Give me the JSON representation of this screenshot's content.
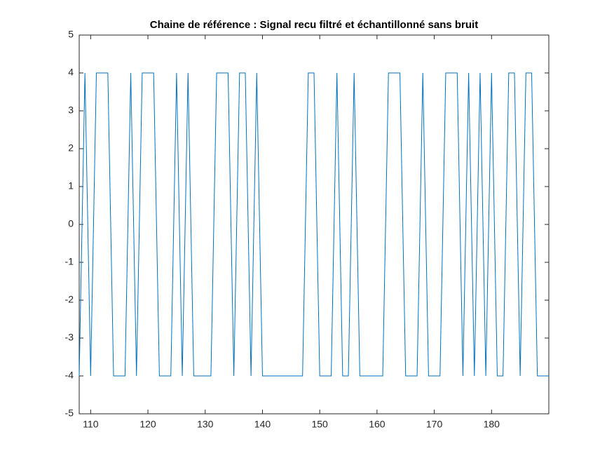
{
  "chart_data": {
    "type": "line",
    "title": "Chaine de référence : Signal recu filtré et échantillonné sans bruit",
    "x": [
      108,
      109,
      110,
      111,
      112,
      113,
      114,
      115,
      116,
      117,
      118,
      119,
      120,
      121,
      122,
      123,
      124,
      125,
      126,
      127,
      128,
      129,
      130,
      131,
      132,
      133,
      134,
      135,
      136,
      137,
      138,
      139,
      140,
      141,
      142,
      143,
      144,
      145,
      146,
      147,
      148,
      149,
      150,
      151,
      152,
      153,
      154,
      155,
      156,
      157,
      158,
      159,
      160,
      161,
      162,
      163,
      164,
      165,
      166,
      167,
      168,
      169,
      170,
      171,
      172,
      173,
      174,
      175,
      176,
      177,
      178,
      179,
      180,
      181,
      182,
      183,
      184,
      185,
      186,
      187,
      188,
      189,
      190
    ],
    "series": [
      {
        "color": "#0072bd",
        "values": [
          -4,
          4,
          -4,
          4,
          4,
          4,
          -4,
          -4,
          -4,
          4,
          -4,
          4,
          4,
          4,
          -4,
          -4,
          -4,
          4,
          -4,
          4,
          -4,
          -4,
          -4,
          -4,
          4,
          4,
          4,
          -4,
          4,
          4,
          -4,
          4,
          -4,
          -4,
          -4,
          -4,
          -4,
          -4,
          -4,
          -4,
          4,
          4,
          -4,
          -4,
          -4,
          4,
          -4,
          -4,
          4,
          -4,
          -4,
          -4,
          -4,
          -4,
          4,
          4,
          4,
          -4,
          -4,
          -4,
          4,
          -4,
          -4,
          -4,
          4,
          4,
          4,
          -4,
          4,
          -4,
          4,
          -4,
          4,
          -4,
          -4,
          4,
          4,
          -4,
          4,
          4,
          -4,
          -4,
          -4
        ]
      }
    ],
    "xlim": [
      108,
      190
    ],
    "ylim": [
      -5,
      5
    ],
    "xticks": [
      110,
      120,
      130,
      140,
      150,
      160,
      170,
      180
    ],
    "yticks": [
      -5,
      -4,
      -3,
      -2,
      -1,
      0,
      1,
      2,
      3,
      4,
      5
    ]
  }
}
